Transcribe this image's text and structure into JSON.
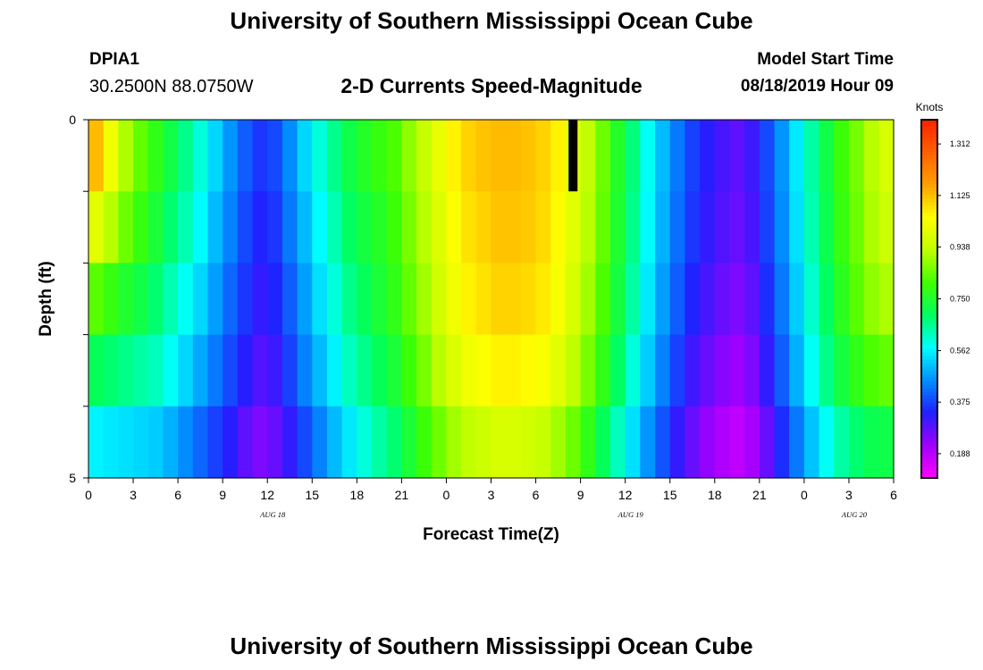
{
  "header": {
    "title": "University of Southern Mississippi Ocean Cube",
    "station": "DPIA1",
    "coordinates": "30.2500N 88.0750W",
    "subtitle": "2-D Currents Speed-Magnitude",
    "model_start_label": "Model Start Time",
    "model_start_value": "08/18/2019 Hour 09"
  },
  "footer": {
    "title": "University of Southern Mississippi Ocean Cube"
  },
  "chart_data": {
    "type": "heatmap",
    "title": "2-D Currents Speed-Magnitude",
    "xlabel": "Forecast Time(Z)",
    "ylabel": "Depth (ft)",
    "x_tick_labels": [
      "0",
      "3",
      "6",
      "9",
      "12",
      "15",
      "18",
      "21",
      "0",
      "3",
      "6",
      "9",
      "12",
      "15",
      "18",
      "21",
      "0",
      "3",
      "6"
    ],
    "date_labels": [
      {
        "label": "AUG 18",
        "at_tick": 4
      },
      {
        "label": "AUG 19",
        "at_tick": 12
      },
      {
        "label": "AUG 20",
        "at_tick": 17
      }
    ],
    "y_tick_labels": [
      {
        "label": "0",
        "depth": 0
      },
      {
        "label": "5",
        "depth": 5
      }
    ],
    "ylim": [
      0,
      5
    ],
    "hours": 54,
    "depth_rows": 5,
    "colorbar": {
      "unit": "Knots",
      "labels": [
        "1.312",
        "1.125",
        "0.938",
        "0.750",
        "0.562",
        "0.375",
        "0.188"
      ],
      "vmin": 0.1,
      "vmax": 1.4,
      "colors": [
        "#ff00ff",
        "#a000ff",
        "#2020ff",
        "#0090ff",
        "#00ffff",
        "#00ff60",
        "#40ff00",
        "#c0ff00",
        "#ffff00",
        "#ffa000",
        "#ff6000",
        "#ff2000"
      ]
    },
    "values": [
      [
        1.13,
        1.02,
        0.91,
        0.84,
        0.78,
        0.72,
        0.66,
        0.6,
        0.53,
        0.46,
        0.4,
        0.36,
        0.38,
        0.45,
        0.53,
        0.6,
        0.66,
        0.72,
        0.76,
        0.79,
        0.82,
        0.88,
        0.94,
        1.0,
        1.06,
        1.1,
        1.12,
        1.13,
        1.13,
        1.12,
        1.1,
        1.06,
        1.0,
        0.93,
        0.85,
        0.76,
        0.67,
        0.58,
        0.5,
        0.43,
        0.37,
        0.33,
        0.3,
        0.28,
        0.31,
        0.38,
        0.46,
        0.55,
        0.64,
        0.72,
        0.8,
        0.86,
        0.92,
        0.97
      ],
      [
        0.99,
        0.92,
        0.85,
        0.79,
        0.74,
        0.68,
        0.63,
        0.57,
        0.5,
        0.44,
        0.38,
        0.34,
        0.36,
        0.43,
        0.5,
        0.57,
        0.63,
        0.69,
        0.73,
        0.76,
        0.8,
        0.86,
        0.92,
        0.98,
        1.04,
        1.08,
        1.1,
        1.12,
        1.12,
        1.11,
        1.09,
        1.05,
        0.99,
        0.92,
        0.84,
        0.75,
        0.66,
        0.57,
        0.49,
        0.42,
        0.36,
        0.32,
        0.29,
        0.27,
        0.3,
        0.37,
        0.45,
        0.54,
        0.63,
        0.71,
        0.79,
        0.85,
        0.91,
        0.95
      ],
      [
        0.83,
        0.79,
        0.75,
        0.72,
        0.68,
        0.63,
        0.58,
        0.53,
        0.47,
        0.41,
        0.36,
        0.32,
        0.34,
        0.4,
        0.47,
        0.54,
        0.6,
        0.66,
        0.7,
        0.74,
        0.78,
        0.84,
        0.9,
        0.96,
        1.02,
        1.06,
        1.08,
        1.1,
        1.1,
        1.09,
        1.07,
        1.03,
        0.97,
        0.9,
        0.82,
        0.73,
        0.64,
        0.55,
        0.47,
        0.4,
        0.34,
        0.3,
        0.27,
        0.25,
        0.28,
        0.35,
        0.43,
        0.52,
        0.61,
        0.69,
        0.77,
        0.83,
        0.88,
        0.91
      ],
      [
        0.7,
        0.68,
        0.66,
        0.64,
        0.62,
        0.58,
        0.53,
        0.48,
        0.43,
        0.38,
        0.33,
        0.29,
        0.31,
        0.37,
        0.44,
        0.5,
        0.56,
        0.62,
        0.66,
        0.7,
        0.74,
        0.8,
        0.86,
        0.92,
        0.98,
        1.02,
        1.04,
        1.06,
        1.06,
        1.05,
        1.03,
        0.99,
        0.93,
        0.86,
        0.78,
        0.69,
        0.6,
        0.52,
        0.44,
        0.37,
        0.31,
        0.27,
        0.24,
        0.22,
        0.25,
        0.32,
        0.4,
        0.49,
        0.58,
        0.66,
        0.73,
        0.78,
        0.82,
        0.84
      ],
      [
        0.56,
        0.55,
        0.54,
        0.53,
        0.52,
        0.49,
        0.45,
        0.41,
        0.37,
        0.33,
        0.28,
        0.25,
        0.27,
        0.32,
        0.38,
        0.44,
        0.5,
        0.55,
        0.6,
        0.64,
        0.68,
        0.74,
        0.8,
        0.85,
        0.9,
        0.93,
        0.95,
        0.97,
        0.97,
        0.96,
        0.94,
        0.9,
        0.85,
        0.78,
        0.7,
        0.62,
        0.54,
        0.46,
        0.39,
        0.32,
        0.27,
        0.23,
        0.2,
        0.18,
        0.21,
        0.27,
        0.35,
        0.43,
        0.51,
        0.58,
        0.64,
        0.68,
        0.71,
        0.72
      ]
    ],
    "highlight": {
      "hour": 32,
      "depth_row": 0
    }
  }
}
